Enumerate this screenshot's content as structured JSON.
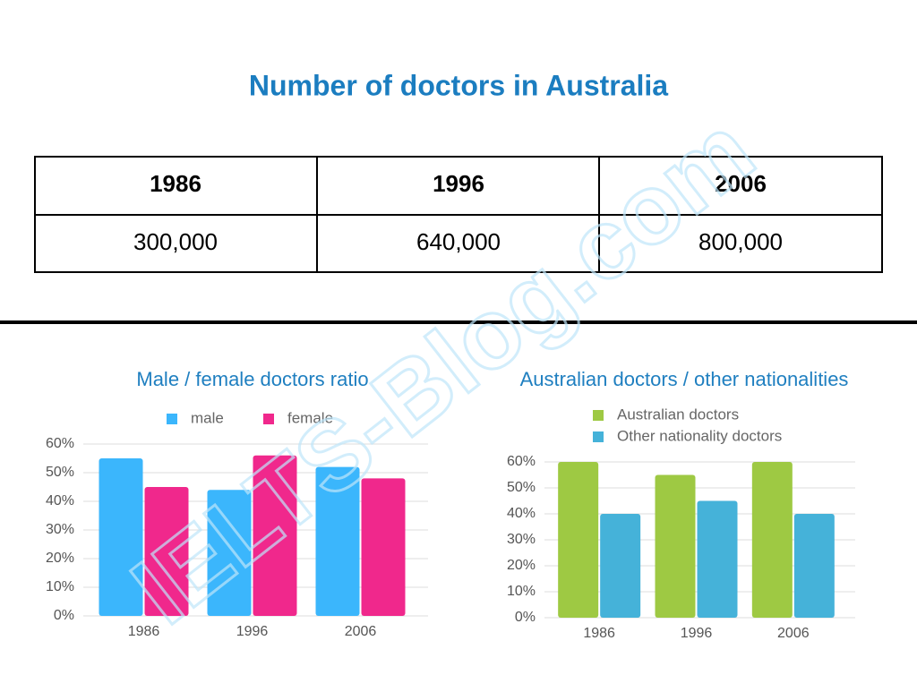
{
  "title": "Number of doctors in Australia",
  "watermark": "IELTS-Blog.com",
  "table": {
    "header": [
      "1986",
      "1996",
      "2006"
    ],
    "rows": [
      [
        "300,000",
        "640,000",
        "800,000"
      ]
    ]
  },
  "chart_data": [
    {
      "type": "bar",
      "title": "Male / female doctors ratio",
      "categories": [
        "1986",
        "1996",
        "2006"
      ],
      "series": [
        {
          "name": "male",
          "color": "#3bb6fc",
          "values": [
            55,
            44,
            52
          ]
        },
        {
          "name": "female",
          "color": "#f0288c",
          "values": [
            45,
            56,
            48
          ]
        }
      ],
      "ylim": [
        0,
        60
      ],
      "yticks": [
        {
          "value": 0,
          "label": "0%"
        },
        {
          "value": 10,
          "label": "10%"
        },
        {
          "value": 20,
          "label": "20%"
        },
        {
          "value": 30,
          "label": "30%"
        },
        {
          "value": 40,
          "label": "40%"
        },
        {
          "value": 50,
          "label": "50%"
        },
        {
          "value": 60,
          "label": "60%"
        }
      ],
      "grid": true
    },
    {
      "type": "bar",
      "title": "Australian doctors / other nationalities",
      "categories": [
        "1986",
        "1996",
        "2006"
      ],
      "series": [
        {
          "name": "Australian doctors",
          "color": "#9ec943",
          "values": [
            60,
            55,
            60
          ]
        },
        {
          "name": "Other nationality doctors",
          "color": "#45b2d9",
          "values": [
            40,
            45,
            40
          ]
        }
      ],
      "ylim": [
        0,
        60
      ],
      "yticks": [
        {
          "value": 0,
          "label": "0%"
        },
        {
          "value": 10,
          "label": "10%"
        },
        {
          "value": 20,
          "label": "20%"
        },
        {
          "value": 30,
          "label": "30%"
        },
        {
          "value": 40,
          "label": "40%"
        },
        {
          "value": 50,
          "label": "50%"
        },
        {
          "value": 60,
          "label": "60%"
        }
      ],
      "grid": true
    }
  ]
}
